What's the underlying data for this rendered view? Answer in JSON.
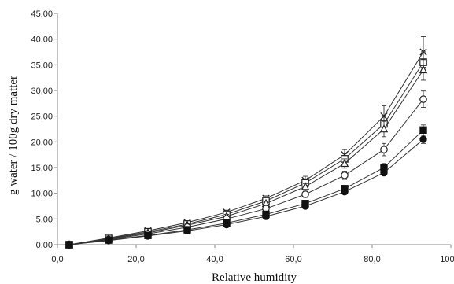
{
  "chart_data": {
    "type": "line",
    "xlabel": "Relative humidity",
    "ylabel": "g water / 100g dry matter",
    "xlim": [
      0,
      100
    ],
    "ylim": [
      0,
      45
    ],
    "x_ticks": [
      "0,0",
      "20,0",
      "40,0",
      "60,0",
      "80,0",
      "100,0"
    ],
    "y_ticks": [
      "0,00",
      "5,00",
      "10,00",
      "15,00",
      "20,00",
      "25,00",
      "30,00",
      "35,00",
      "40,00",
      "45,00"
    ],
    "grid": false,
    "legend": "none",
    "x": [
      3,
      13,
      23,
      33,
      43,
      53,
      63,
      73,
      83,
      93
    ],
    "series": [
      {
        "marker": "cross",
        "values": [
          0,
          1.3,
          2.7,
          4.3,
          6.3,
          9.0,
          12.5,
          17.5,
          25.0,
          37.5
        ],
        "error": [
          0,
          0.2,
          0.3,
          0.3,
          0.4,
          0.5,
          0.8,
          1.0,
          2.0,
          3.0
        ]
      },
      {
        "marker": "open-square",
        "values": [
          0,
          1.2,
          2.5,
          4.0,
          5.9,
          8.5,
          12.0,
          16.7,
          23.5,
          35.5
        ],
        "error": [
          0,
          0.2,
          0.3,
          0.3,
          0.4,
          0.5,
          0.7,
          1.0,
          1.5,
          2.0
        ]
      },
      {
        "marker": "open-triangle",
        "values": [
          0,
          1.1,
          2.3,
          3.8,
          5.5,
          8.0,
          11.3,
          15.8,
          22.5,
          34.0
        ],
        "error": [
          0,
          0.2,
          0.3,
          0.3,
          0.4,
          0.5,
          0.6,
          0.9,
          1.5,
          2.0
        ]
      },
      {
        "marker": "open-circle",
        "values": [
          0,
          1.0,
          2.1,
          3.4,
          5.0,
          7.0,
          9.8,
          13.5,
          18.5,
          28.3
        ],
        "error": [
          0,
          0.2,
          0.2,
          0.3,
          0.3,
          0.4,
          0.6,
          0.8,
          1.2,
          1.6
        ]
      },
      {
        "marker": "filled-square",
        "values": [
          0,
          0.9,
          1.8,
          2.9,
          4.2,
          5.9,
          8.0,
          10.9,
          15.0,
          22.3
        ],
        "error": [
          0,
          0.1,
          0.2,
          0.2,
          0.3,
          0.4,
          0.5,
          0.6,
          0.8,
          1.0
        ]
      },
      {
        "marker": "filled-circle",
        "values": [
          0,
          0.8,
          1.7,
          2.7,
          3.9,
          5.5,
          7.5,
          10.3,
          14.0,
          20.5
        ],
        "error": [
          0,
          0.1,
          0.2,
          0.2,
          0.3,
          0.3,
          0.4,
          0.5,
          0.6,
          0.8
        ]
      }
    ]
  }
}
